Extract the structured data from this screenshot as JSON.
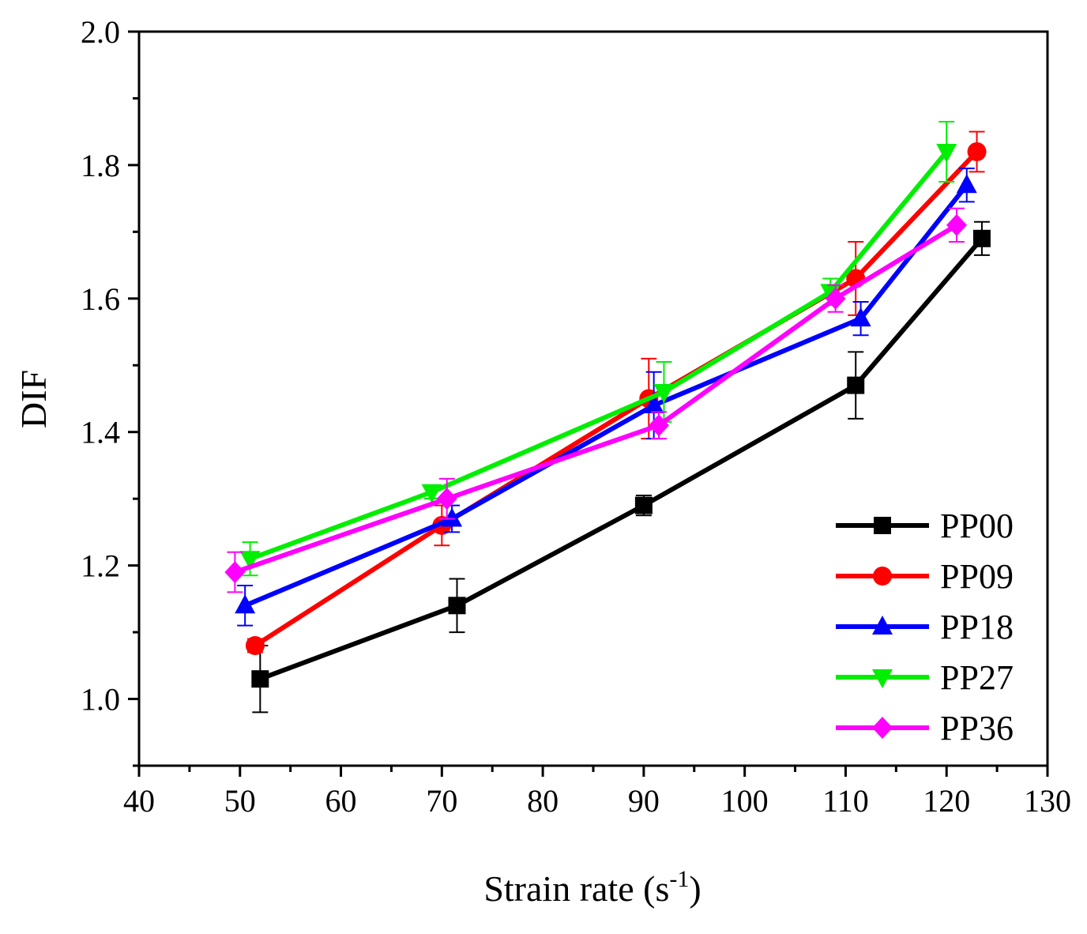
{
  "chart_data": {
    "type": "line",
    "title": "",
    "xlabel": "Strain rate (s",
    "xlabel_superscript": "-1",
    "xlabel_suffix": ")",
    "ylabel": "DIF",
    "xlim": [
      40,
      130
    ],
    "ylim": [
      0.9,
      2.0
    ],
    "x_ticks": [
      40,
      50,
      60,
      70,
      80,
      90,
      100,
      110,
      120,
      130
    ],
    "x_tick_labels": [
      "40",
      "50",
      "60",
      "70",
      "80",
      "90",
      "100",
      "110",
      "120",
      "130"
    ],
    "y_ticks": [
      1.0,
      1.2,
      1.4,
      1.6,
      1.8,
      2.0
    ],
    "y_tick_labels": [
      "1.0",
      "1.2",
      "1.4",
      "1.6",
      "1.8",
      "2.0"
    ],
    "legend_position": "bottom-right",
    "series": [
      {
        "name": "PP00",
        "color": "#000000",
        "marker": "square",
        "x": [
          52.0,
          71.5,
          90.0,
          111.0,
          123.5
        ],
        "y": [
          1.03,
          1.14,
          1.29,
          1.47,
          1.69
        ],
        "err": [
          0.05,
          0.04,
          0.015,
          0.05,
          0.025
        ]
      },
      {
        "name": "PP09",
        "color": "#ff0000",
        "marker": "circle",
        "x": [
          51.5,
          70.0,
          90.5,
          111.0,
          123.0
        ],
        "y": [
          1.08,
          1.26,
          1.45,
          1.63,
          1.82
        ],
        "err": [
          0.01,
          0.03,
          0.06,
          0.055,
          0.03
        ]
      },
      {
        "name": "PP18",
        "color": "#0000ff",
        "marker": "triangle-up",
        "x": [
          50.5,
          71.0,
          91.0,
          111.5,
          122.0
        ],
        "y": [
          1.14,
          1.27,
          1.44,
          1.57,
          1.77
        ],
        "err": [
          0.03,
          0.02,
          0.05,
          0.025,
          0.025
        ]
      },
      {
        "name": "PP27",
        "color": "#00ee00",
        "marker": "triangle-down",
        "x": [
          51.0,
          69.0,
          92.0,
          108.5,
          120.0
        ],
        "y": [
          1.21,
          1.31,
          1.46,
          1.61,
          1.82
        ],
        "err": [
          0.025,
          0.01,
          0.045,
          0.02,
          0.045
        ]
      },
      {
        "name": "PP36",
        "color": "#ff00ff",
        "marker": "diamond",
        "x": [
          49.5,
          70.5,
          91.5,
          109.0,
          121.0
        ],
        "y": [
          1.19,
          1.3,
          1.41,
          1.6,
          1.71
        ],
        "err": [
          0.03,
          0.03,
          0.02,
          0.02,
          0.025
        ]
      }
    ]
  }
}
